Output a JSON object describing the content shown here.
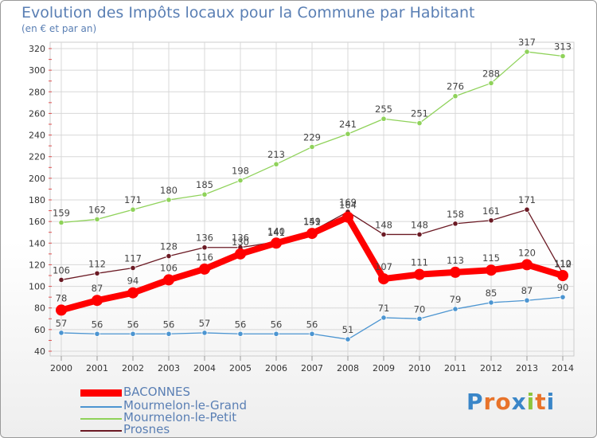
{
  "header": {
    "title": "Evolution des Impôts locaux pour la Commune par Habitant",
    "subtitle": "(en € et par an)"
  },
  "logo": {
    "text": "Proxiti"
  },
  "chart_data": {
    "type": "line",
    "categories": [
      "2000",
      "2001",
      "2002",
      "2003",
      "2004",
      "2005",
      "2006",
      "2007",
      "2008",
      "2009",
      "2010",
      "2011",
      "2012",
      "2013",
      "2014"
    ],
    "ylim": [
      40,
      320
    ],
    "yticks": [
      40,
      60,
      80,
      100,
      120,
      140,
      160,
      180,
      200,
      220,
      240,
      260,
      280,
      300,
      320
    ],
    "grid": true,
    "legend_position": "bottom-left",
    "series": [
      {
        "name": "Mourmelon-le-Petit",
        "color": "#8fd25a",
        "values": [
          159,
          162,
          171,
          180,
          185,
          198,
          213,
          229,
          241,
          255,
          251,
          276,
          288,
          317,
          313
        ]
      },
      {
        "name": "Prosnes",
        "color": "#6b1a24",
        "values": [
          106,
          112,
          117,
          128,
          136,
          136,
          141,
          151,
          169,
          148,
          148,
          158,
          161,
          171,
          112
        ]
      },
      {
        "name": "Mourmelon-le-Grand",
        "color": "#4c95d1",
        "values": [
          57,
          56,
          56,
          56,
          57,
          56,
          56,
          56,
          51,
          71,
          70,
          79,
          85,
          87,
          90
        ]
      },
      {
        "name": "BACONNES",
        "color": "#ff0000",
        "values": [
          78,
          87,
          94,
          106,
          116,
          130,
          140,
          149,
          164,
          107,
          111,
          113,
          115,
          120,
          110
        ]
      }
    ],
    "legend_order": [
      "BACONNES",
      "Mourmelon-le-Grand",
      "Mourmelon-le-Petit",
      "Prosnes"
    ]
  }
}
